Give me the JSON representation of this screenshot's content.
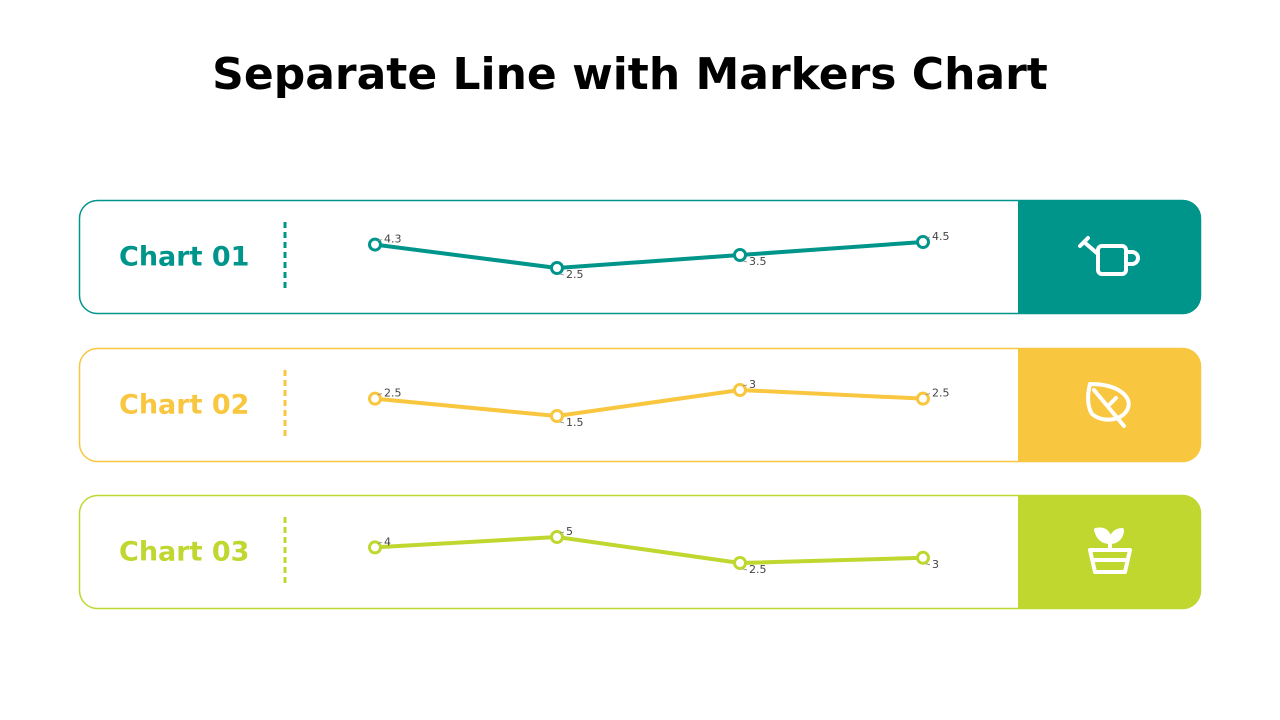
{
  "title": "Separate Line with Markers Chart",
  "chart_data": [
    {
      "type": "line",
      "title": "Chart 01",
      "color": "#00958b",
      "values": [
        4.3,
        2.5,
        3.5,
        4.5
      ]
    },
    {
      "type": "line",
      "title": "Chart 02",
      "color": "#f8c63f",
      "values": [
        2.5,
        1.5,
        3,
        2.5
      ]
    },
    {
      "type": "line",
      "title": "Chart 03",
      "color": "#bfd72f",
      "values": [
        4,
        5,
        2.5,
        3
      ]
    }
  ]
}
